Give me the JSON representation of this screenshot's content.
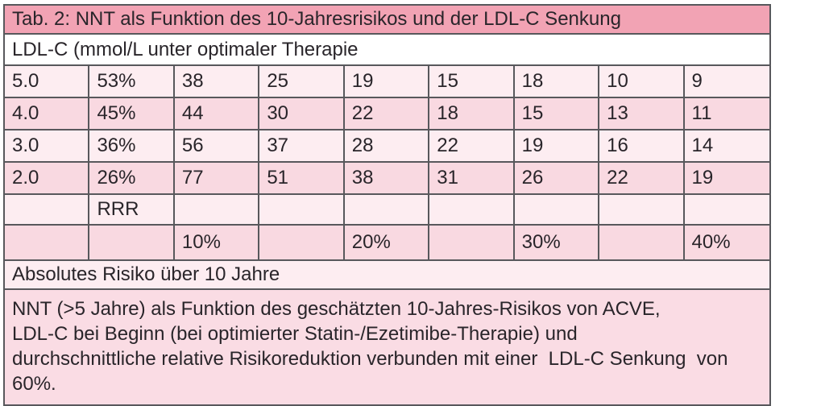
{
  "table": {
    "title": "Tab. 2: NNT als Funktion des 10-Jahresrisikos und der LDL-C Senkung",
    "subheader": "LDL-C (mmol/L unter optimaler Therapie",
    "column_count": 9,
    "data_rows": [
      {
        "shade": "light",
        "cells": [
          "5.0",
          "53%",
          "38",
          "25",
          "19",
          "15",
          "18",
          "10",
          "9"
        ]
      },
      {
        "shade": "dark",
        "cells": [
          "4.0",
          "45%",
          "44",
          "30",
          "22",
          "18",
          "15",
          "13",
          "11"
        ]
      },
      {
        "shade": "light",
        "cells": [
          "3.0",
          "36%",
          "56",
          "37",
          "28",
          "22",
          "19",
          "16",
          "14"
        ]
      },
      {
        "shade": "dark",
        "cells": [
          "2.0",
          "26%",
          "77",
          "51",
          "38",
          "31",
          "26",
          "22",
          "19"
        ]
      },
      {
        "shade": "light",
        "cells": [
          "",
          "RRR",
          "",
          "",
          "",
          "",
          "",
          "",
          ""
        ]
      },
      {
        "shade": "dark",
        "cells": [
          "",
          "",
          "10%",
          "",
          "20%",
          "",
          "30%",
          "",
          "40%"
        ]
      }
    ],
    "absolute_risk_label": "Absolutes Risiko über 10 Jahre",
    "footnote_lines": [
      "NNT (>5 Jahre) als Funktion des geschätzten 10-Jahres-Risikos von ACVE,",
      "LDL-C bei Beginn (bei optimierter Statin-/Ezetimibe-Therapie) und",
      "durchschnittliche relative Risikoreduktion verbunden mit einer  LDL-C Senkung  von 60%."
    ],
    "colors": {
      "header_bg": "#f2a3b4",
      "light_row_bg": "#fdedf1",
      "dark_row_bg": "#f9d9e1",
      "white_row_bg": "#ffffff",
      "footer_bg": "#fadce4",
      "grid_line": "#58585c",
      "text": "#29252a",
      "bottom_shadow": "#8e8e93"
    }
  }
}
